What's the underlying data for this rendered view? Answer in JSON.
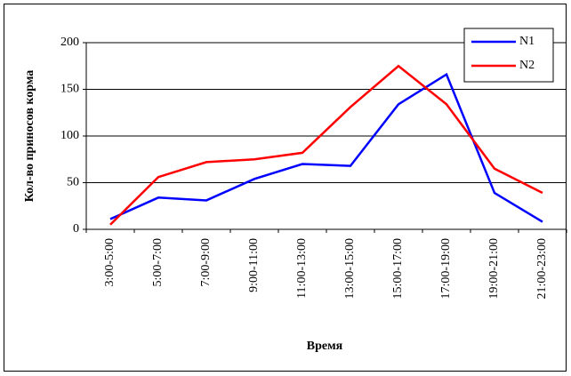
{
  "chart_data": {
    "type": "line",
    "y_label": "Кол-во приносов корма",
    "x_label": "Время",
    "categories": [
      "3:00-5:00",
      "5:00-7:00",
      "7:00-9:00",
      "9:00-11:00",
      "11:00-13:00",
      "13:00-15:00",
      "15:00-17:00",
      "17:00-19:00",
      "19:00-21:00",
      "21:00-23:00"
    ],
    "series": [
      {
        "name": "N1",
        "color": "#0000ff",
        "values": [
          11,
          34,
          31,
          54,
          70,
          68,
          134,
          166,
          39,
          8
        ]
      },
      {
        "name": "N2",
        "color": "#ff0000",
        "values": [
          5,
          56,
          72,
          75,
          82,
          131,
          175,
          134,
          65,
          39
        ]
      }
    ],
    "ylim": [
      0,
      200
    ],
    "yticks": [
      0,
      50,
      100,
      150,
      200
    ],
    "grid": true,
    "legend": "top-right"
  }
}
